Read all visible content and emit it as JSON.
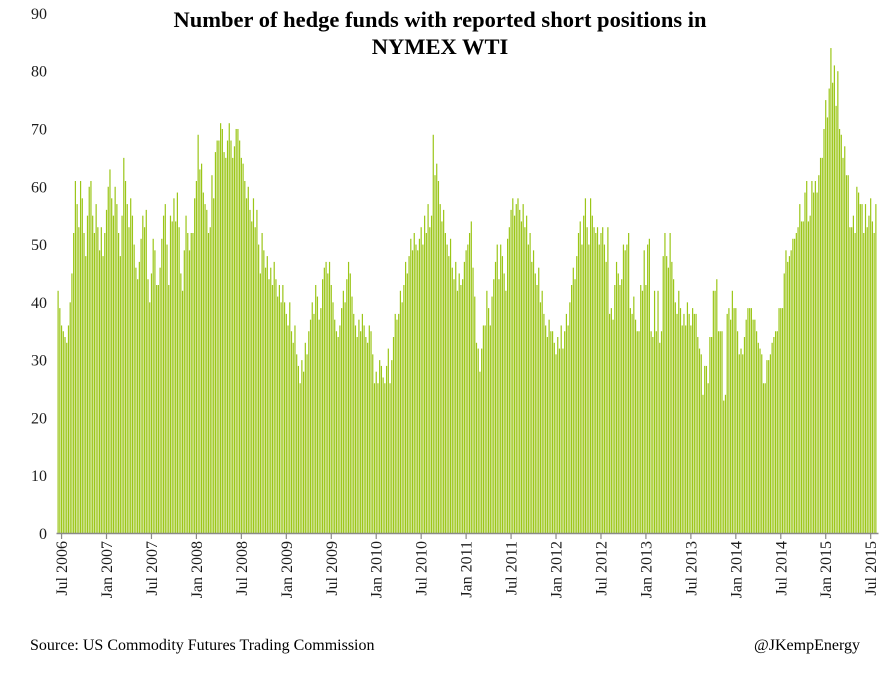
{
  "header": {
    "title_line1": "Number of  hedge funds with reported short positions in",
    "title_line2": "NYMEX WTI"
  },
  "footer": {
    "source": "Source: US Commodity Futures Trading Commission",
    "attribution": "@JKempEnergy"
  },
  "chart_data": {
    "type": "bar",
    "title": "Number of hedge funds with reported short positions in NYMEX WTI",
    "xlabel": "",
    "ylabel": "",
    "x_unit": "week",
    "x_tick_labels": [
      "Jul 2006",
      "Jan 2007",
      "Jul 2007",
      "Jan 2008",
      "Jul 2008",
      "Jan 2009",
      "Jul 2009",
      "Jan 2010",
      "Jul 2010",
      "Jan 2011",
      "Jul 2011",
      "Jan 2012",
      "Jul 2012",
      "Jan 2013",
      "Jul 2013",
      "Jan 2014",
      "Jul 2014",
      "Jan 2015",
      "Jul 2015"
    ],
    "x_tick_interval_weeks": 26,
    "x_tick_first_bar_index": 2,
    "ylim": [
      0,
      90
    ],
    "y_ticks": [
      0,
      10,
      20,
      30,
      40,
      50,
      60,
      70,
      80,
      90
    ],
    "grid": false,
    "legend": null,
    "bar_color": "#9bc618",
    "axis_color": "#8a8a8a",
    "values": [
      42,
      39,
      36,
      35,
      34,
      33,
      36,
      40,
      45,
      52,
      61,
      57,
      53,
      61,
      58,
      52,
      48,
      55,
      60,
      61,
      55,
      52,
      57,
      53,
      49,
      53,
      48,
      52,
      56,
      60,
      63,
      58,
      55,
      60,
      57,
      52,
      48,
      55,
      65,
      61,
      57,
      53,
      58,
      55,
      50,
      46,
      44,
      47,
      51,
      55,
      53,
      56,
      44,
      40,
      45,
      51,
      49,
      43,
      43,
      46,
      51,
      55,
      57,
      50,
      43,
      55,
      54,
      58,
      54,
      59,
      53,
      45,
      42,
      49,
      55,
      52,
      49,
      52,
      52,
      58,
      61,
      69,
      63,
      64,
      59,
      57,
      56,
      52,
      53,
      62,
      58,
      66,
      68,
      68,
      71,
      70,
      66,
      65,
      68,
      71,
      68,
      65,
      67,
      70,
      70,
      68,
      65,
      64,
      61,
      58,
      60,
      56,
      54,
      58,
      53,
      56,
      50,
      45,
      52,
      49,
      46,
      48,
      44,
      46,
      43,
      47,
      44,
      41,
      43,
      40,
      43,
      40,
      38,
      36,
      40,
      35,
      33,
      36,
      31,
      29,
      26,
      30,
      28,
      33,
      31,
      35,
      37,
      40,
      38,
      43,
      41,
      37,
      39,
      44,
      46,
      47,
      45,
      47,
      43,
      40,
      37,
      35,
      34,
      36,
      39,
      42,
      40,
      44,
      47,
      45,
      41,
      38,
      36,
      34,
      37,
      35,
      38,
      36,
      34,
      33,
      36,
      35,
      31,
      26,
      28,
      26,
      30,
      29,
      27,
      26,
      29,
      32,
      26,
      30,
      34,
      38,
      37,
      38,
      42,
      40,
      43,
      47,
      45,
      48,
      51,
      49,
      52,
      50,
      49,
      51,
      53,
      50,
      55,
      52,
      57,
      53,
      55,
      69,
      62,
      64,
      61,
      57,
      54,
      56,
      52,
      50,
      48,
      51,
      46,
      44,
      47,
      42,
      45,
      43,
      44,
      47,
      49,
      50,
      52,
      54,
      46,
      41,
      33,
      32,
      28,
      32,
      36,
      36,
      42,
      39,
      36,
      41,
      44,
      47,
      50,
      44,
      50,
      48,
      45,
      42,
      51,
      53,
      56,
      58,
      55,
      57,
      58,
      56,
      54,
      57,
      53,
      55,
      50,
      52,
      47,
      49,
      45,
      43,
      46,
      40,
      42,
      38,
      36,
      34,
      37,
      35,
      35,
      33,
      31,
      34,
      32,
      36,
      32,
      35,
      38,
      36,
      40,
      43,
      46,
      44,
      48,
      52,
      54,
      50,
      55,
      58,
      53,
      50,
      58,
      55,
      53,
      52,
      53,
      50,
      52,
      53,
      50,
      47,
      53,
      38,
      39,
      37,
      43,
      47,
      45,
      43,
      44,
      50,
      49,
      50,
      52,
      39,
      38,
      41,
      37,
      35,
      35,
      43,
      42,
      49,
      43,
      50,
      51,
      35,
      34,
      42,
      35,
      42,
      33,
      35,
      48,
      52,
      48,
      46,
      52,
      47,
      44,
      40,
      38,
      42,
      39,
      36,
      38,
      36,
      40,
      38,
      36,
      39,
      38,
      38,
      34,
      32,
      31,
      24,
      29,
      29,
      26,
      34,
      34,
      42,
      42,
      44,
      35,
      35,
      35,
      23,
      24,
      38,
      39,
      37,
      42,
      39,
      39,
      35,
      31,
      32,
      31,
      34,
      37,
      39,
      39,
      39,
      37,
      37,
      35,
      33,
      32,
      31,
      26,
      26,
      30,
      30,
      31,
      33,
      34,
      35,
      35,
      39,
      39,
      39,
      45,
      49,
      47,
      48,
      49,
      51,
      51,
      52,
      53,
      57,
      54,
      54,
      59,
      61,
      54,
      55,
      61,
      59,
      61,
      59,
      62,
      65,
      65,
      70,
      75,
      72,
      77,
      84,
      78,
      81,
      74,
      80,
      70,
      69,
      65,
      67,
      62,
      62,
      53,
      53,
      55,
      52,
      60,
      59,
      57,
      57,
      52,
      57,
      53,
      55,
      58,
      54,
      52,
      57
    ]
  }
}
